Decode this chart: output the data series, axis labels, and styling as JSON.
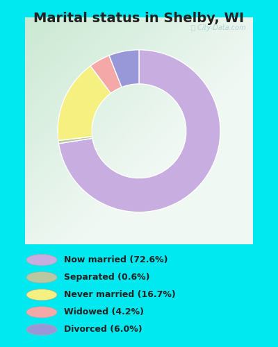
{
  "title": "Marital status in Shelby, WI",
  "title_fontsize": 14,
  "title_color": "#222222",
  "background_outer": "#00e8f0",
  "background_chart_topleft": "#c8e8d0",
  "background_chart_center": "#f0f8f4",
  "categories": [
    "Now married",
    "Separated",
    "Never married",
    "Widowed",
    "Divorced"
  ],
  "values": [
    72.6,
    0.6,
    16.7,
    4.2,
    6.0
  ],
  "colors": [
    "#c8aee0",
    "#b8c8a0",
    "#f5f080",
    "#f5a8a8",
    "#9898d8"
  ],
  "legend_labels": [
    "Now married (72.6%)",
    "Separated (0.6%)",
    "Never married (16.7%)",
    "Widowed (4.2%)",
    "Divorced (6.0%)"
  ],
  "donut_width": 0.42,
  "watermark": "City-Data.com",
  "startangle": 90
}
